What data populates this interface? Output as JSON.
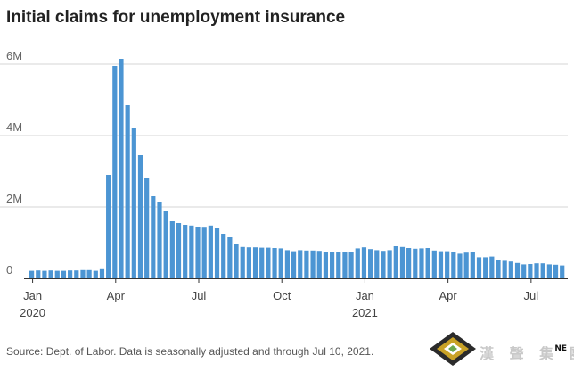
{
  "chart_data": {
    "type": "bar",
    "title": "Initial claims for unemployment insurance",
    "xlabel": "",
    "ylabel": "",
    "ylim": [
      0,
      6500000
    ],
    "yticks": [
      {
        "value": 0,
        "label": "0"
      },
      {
        "value": 2000000,
        "label": "2M"
      },
      {
        "value": 4000000,
        "label": "4M"
      },
      {
        "value": 6000000,
        "label": "6M"
      }
    ],
    "xticks": [
      {
        "index": 0.5,
        "label": "Jan",
        "year": "2020"
      },
      {
        "index": 13.5,
        "label": "Apr",
        "year": ""
      },
      {
        "index": 26.5,
        "label": "Jul",
        "year": ""
      },
      {
        "index": 39.5,
        "label": "Oct",
        "year": ""
      },
      {
        "index": 52.5,
        "label": "Jan",
        "year": "2021"
      },
      {
        "index": 65.5,
        "label": "Apr",
        "year": ""
      },
      {
        "index": 78.5,
        "label": "Jul",
        "year": ""
      }
    ],
    "bar_color": "#4c95d3",
    "grid": true,
    "legend": "none",
    "series": [
      {
        "values": [
          210000,
          220000,
          210000,
          220000,
          210000,
          210000,
          220000,
          220000,
          230000,
          230000,
          210000,
          280000,
          2900000,
          5950000,
          6150000,
          4850000,
          4200000,
          3450000,
          2800000,
          2300000,
          2150000,
          1900000,
          1600000,
          1550000,
          1500000,
          1480000,
          1450000,
          1420000,
          1480000,
          1400000,
          1250000,
          1150000,
          950000,
          880000,
          870000,
          870000,
          860000,
          860000,
          850000,
          840000,
          790000,
          760000,
          790000,
          780000,
          780000,
          770000,
          740000,
          730000,
          740000,
          740000,
          750000,
          840000,
          870000,
          820000,
          790000,
          770000,
          790000,
          900000,
          880000,
          850000,
          830000,
          840000,
          850000,
          780000,
          760000,
          760000,
          750000,
          690000,
          720000,
          740000,
          590000,
          590000,
          610000,
          520000,
          490000,
          470000,
          430000,
          390000,
          400000,
          420000,
          420000,
          390000,
          380000,
          360000
        ]
      }
    ]
  },
  "source": "Source: Dept. of Labor. Data is seasonally adjusted and through Jul 10, 2021.",
  "watermark": {
    "text": "漢 聲 集 團",
    "badge": "NE"
  }
}
